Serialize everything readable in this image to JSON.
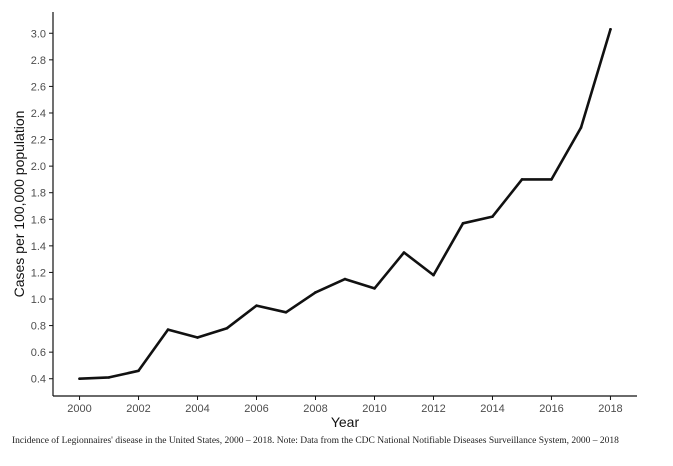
{
  "chart_data": {
    "type": "line",
    "xlabel": "Year",
    "ylabel": "Cases per 100,000 population",
    "x": [
      2000,
      2001,
      2002,
      2003,
      2004,
      2005,
      2006,
      2007,
      2008,
      2009,
      2010,
      2011,
      2012,
      2013,
      2014,
      2015,
      2016,
      2017,
      2018
    ],
    "series": [
      {
        "values": [
          0.4,
          0.41,
          0.46,
          0.77,
          0.71,
          0.78,
          0.95,
          0.9,
          1.05,
          1.15,
          1.08,
          1.35,
          1.18,
          1.57,
          1.62,
          1.9,
          1.9,
          2.29,
          3.03
        ]
      }
    ],
    "xticks": [
      "2000",
      "2002",
      "2004",
      "2006",
      "2008",
      "2010",
      "2012",
      "2014",
      "2016",
      "2018"
    ],
    "yticks": [
      "0.4",
      "0.6",
      "0.8",
      "1.0",
      "1.2",
      "1.4",
      "1.6",
      "1.8",
      "2.0",
      "2.2",
      "2.4",
      "2.6",
      "2.8",
      "3.0"
    ],
    "xlim": [
      1999.1,
      2018.9
    ],
    "ylim": [
      0.27,
      3.16
    ],
    "grid": false,
    "line_color": "#111111"
  },
  "caption": "Incidence of Legionnaires' disease in the United States, 2000 – 2018. Note: Data from the CDC National Notifiable Diseases Surveillance System, 2000 – 2018"
}
